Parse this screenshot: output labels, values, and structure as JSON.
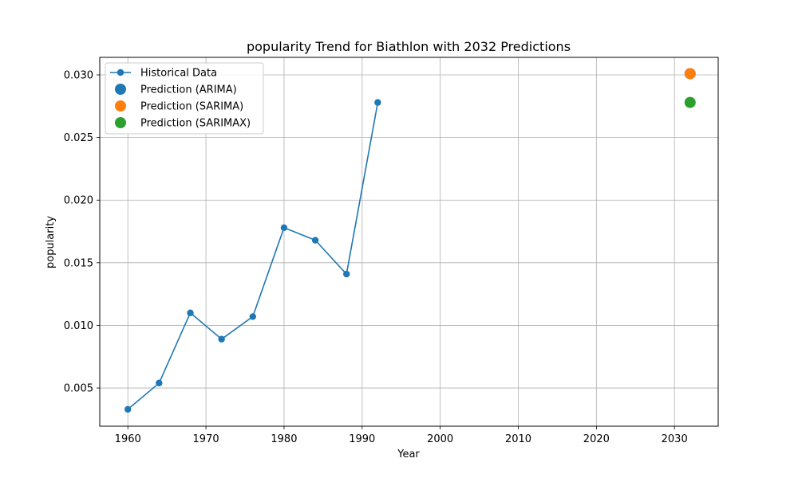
{
  "chart_data": {
    "type": "line",
    "title": "popularity Trend for Biathlon with 2032 Predictions",
    "xlabel": "Year",
    "ylabel": "popularity",
    "xlim": [
      1956.4,
      2035.6
    ],
    "ylim": [
      0.00195,
      0.0314
    ],
    "xticks": [
      1960,
      1970,
      1980,
      1990,
      2000,
      2010,
      2020,
      2030
    ],
    "yticks": [
      0.005,
      0.01,
      0.015,
      0.02,
      0.025,
      0.03
    ],
    "ytick_labels": [
      "0.005",
      "0.010",
      "0.015",
      "0.020",
      "0.025",
      "0.030"
    ],
    "grid": true,
    "legend_position": "top-left",
    "series": [
      {
        "name": "Historical Data",
        "kind": "line-marker",
        "color": "#1f77b4",
        "x": [
          1960,
          1964,
          1968,
          1972,
          1976,
          1980,
          1984,
          1988,
          1992
        ],
        "y": [
          0.0033,
          0.0054,
          0.011,
          0.0089,
          0.0107,
          0.0178,
          0.0168,
          0.0141,
          0.0278
        ]
      },
      {
        "name": "Prediction (ARIMA)",
        "kind": "point",
        "color": "#1f77b4",
        "x": [
          2032
        ],
        "y": [
          0.0301
        ]
      },
      {
        "name": "Prediction (SARIMA)",
        "kind": "point",
        "color": "#ff7f0e",
        "x": [
          2032
        ],
        "y": [
          0.0301
        ]
      },
      {
        "name": "Prediction (SARIMAX)",
        "kind": "point",
        "color": "#2ca02c",
        "x": [
          2032
        ],
        "y": [
          0.0278
        ]
      }
    ]
  }
}
